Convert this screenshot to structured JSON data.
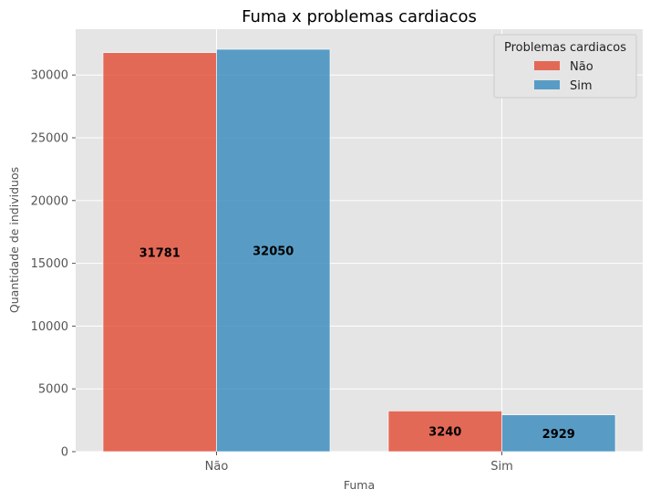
{
  "chart_data": {
    "type": "bar",
    "title": "Fuma x problemas cardiacos",
    "xlabel": "Fuma",
    "ylabel": "Quantidade de individuos",
    "categories": [
      "Não",
      "Sim"
    ],
    "series": [
      {
        "name": "Não",
        "values": [
          31781,
          3240
        ],
        "color": "#e24a33"
      },
      {
        "name": "Sim",
        "values": [
          32050,
          2929
        ],
        "color": "#348abd"
      }
    ],
    "ylim": [
      0,
      33650
    ],
    "yticks": [
      0,
      5000,
      10000,
      15000,
      20000,
      25000,
      30000
    ],
    "grid": true,
    "background_color": "#e5e5e5",
    "legend": {
      "title": "Problemas cardiacos",
      "placement": "top-right"
    }
  }
}
